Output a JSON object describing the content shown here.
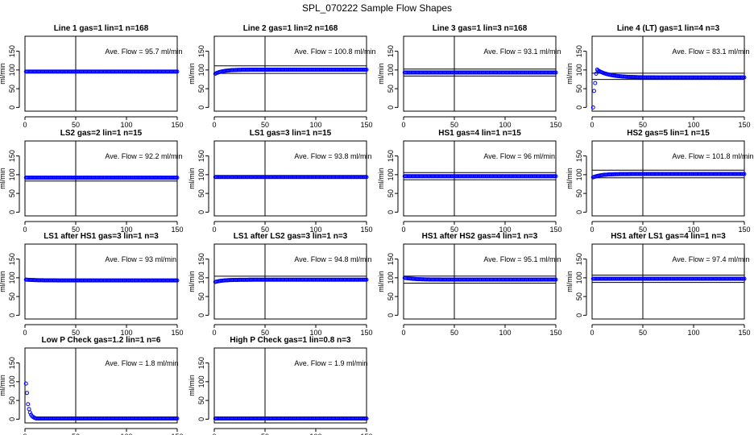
{
  "title": "SPL_070222  Sample Flow Shapes",
  "ylabel": "ml/min",
  "x_ticks": [
    0,
    50,
    100,
    150
  ],
  "y_ticks": [
    0,
    50,
    100,
    150
  ],
  "colors": {
    "points": "#0000ff",
    "lines": "#000000",
    "background": "#ffffff"
  },
  "chart_data": [
    {
      "type": "scatter",
      "title": "Line 1 gas=1 lin=1 n=168",
      "annotation": "Ave. Flow =  95.7  ml/min",
      "ave_flow": 95.7,
      "xlim": [
        0,
        150
      ],
      "ylim": [
        -10,
        190
      ],
      "vline": 50,
      "hlines": [],
      "profile": {
        "start": 95.7,
        "end": 95.7,
        "tau": 1,
        "rise": false
      }
    },
    {
      "type": "scatter",
      "title": "Line 2 gas=1 lin=2 n=168",
      "annotation": "Ave. Flow =  100.8  ml/min",
      "ave_flow": 100.8,
      "xlim": [
        0,
        150
      ],
      "ylim": [
        -10,
        190
      ],
      "vline": 50,
      "hlines": [
        110.9,
        90.7
      ],
      "profile": {
        "start": 90,
        "end": 100.8,
        "tau": 8,
        "rise": true
      }
    },
    {
      "type": "scatter",
      "title": "Line 3 gas=1 lin=3 n=168",
      "annotation": "Ave. Flow =  93.1  ml/min",
      "ave_flow": 93.1,
      "xlim": [
        0,
        150
      ],
      "ylim": [
        -10,
        190
      ],
      "vline": 50,
      "hlines": [
        102.4,
        83.8
      ],
      "profile": {
        "start": 93.1,
        "end": 93.1,
        "tau": 1,
        "rise": false
      }
    },
    {
      "type": "scatter",
      "title": "Line 4 (LT) gas=1 lin=4 n=3",
      "annotation": "Ave. Flow =  83.1  ml/min",
      "ave_flow": 83.1,
      "xlim": [
        0,
        150
      ],
      "ylim": [
        -10,
        190
      ],
      "vline": 50,
      "hlines": [
        91.4,
        74.8
      ],
      "profile": {
        "start": 108,
        "end": 80,
        "tau": 12,
        "rise": false
      },
      "early_points": [
        [
          1,
          0
        ],
        [
          2,
          44
        ],
        [
          3,
          65
        ],
        [
          4,
          90
        ],
        [
          5,
          101
        ]
      ]
    },
    {
      "type": "scatter",
      "title": "LS2 gas=2 lin=1 n=15",
      "annotation": "Ave. Flow =  92.2  ml/min",
      "ave_flow": 92.2,
      "xlim": [
        0,
        150
      ],
      "ylim": [
        -10,
        190
      ],
      "vline": 50,
      "hlines": [
        83.0
      ],
      "profile": {
        "start": 92.2,
        "end": 92.2,
        "tau": 1,
        "rise": false
      }
    },
    {
      "type": "scatter",
      "title": "LS1 gas=3 lin=1 n=15",
      "annotation": "Ave. Flow =  93.8  ml/min",
      "ave_flow": 93.8,
      "xlim": [
        0,
        150
      ],
      "ylim": [
        -10,
        190
      ],
      "vline": 50,
      "hlines": [],
      "profile": {
        "start": 93.8,
        "end": 93.8,
        "tau": 1,
        "rise": false
      }
    },
    {
      "type": "scatter",
      "title": "HS1 gas=4 lin=1 n=15",
      "annotation": "Ave. Flow =  96  ml/min",
      "ave_flow": 96,
      "xlim": [
        0,
        150
      ],
      "ylim": [
        -10,
        190
      ],
      "vline": 50,
      "hlines": [
        105.6,
        86.4
      ],
      "profile": {
        "start": 96,
        "end": 96,
        "tau": 1,
        "rise": false
      }
    },
    {
      "type": "scatter",
      "title": "HS2 gas=5 lin=1 n=15",
      "annotation": "Ave. Flow =  101.8  ml/min",
      "ave_flow": 101.8,
      "xlim": [
        0,
        150
      ],
      "ylim": [
        -10,
        190
      ],
      "vline": 50,
      "hlines": [
        112.0,
        91.6
      ],
      "profile": {
        "start": 93,
        "end": 101.8,
        "tau": 8,
        "rise": true
      }
    },
    {
      "type": "scatter",
      "title": "LS1 after HS1 gas=3 lin=1 n=3",
      "annotation": "Ave. Flow =  93  ml/min",
      "ave_flow": 93,
      "xlim": [
        0,
        150
      ],
      "ylim": [
        -10,
        190
      ],
      "vline": 50,
      "hlines": [],
      "profile": {
        "start": 95,
        "end": 93,
        "tau": 10,
        "rise": false
      }
    },
    {
      "type": "scatter",
      "title": "LS1 after LS2 gas=3 lin=1 n=3",
      "annotation": "Ave. Flow =  94.8  ml/min",
      "ave_flow": 94.8,
      "xlim": [
        0,
        150
      ],
      "ylim": [
        -10,
        190
      ],
      "vline": 50,
      "hlines": [
        104.3
      ],
      "profile": {
        "start": 89,
        "end": 94.8,
        "tau": 8,
        "rise": true
      }
    },
    {
      "type": "scatter",
      "title": "HS1 after HS2 gas=4 lin=1 n=3",
      "annotation": "Ave. Flow =  95.1  ml/min",
      "ave_flow": 95.1,
      "xlim": [
        0,
        150
      ],
      "ylim": [
        -10,
        190
      ],
      "vline": 50,
      "hlines": [
        104.6,
        85.6
      ],
      "profile": {
        "start": 100,
        "end": 95.1,
        "tau": 10,
        "rise": false
      }
    },
    {
      "type": "scatter",
      "title": "HS1 after LS1 gas=4 lin=1 n=3",
      "annotation": "Ave. Flow =  97.4  ml/min",
      "ave_flow": 97.4,
      "xlim": [
        0,
        150
      ],
      "ylim": [
        -10,
        190
      ],
      "vline": 50,
      "hlines": [
        107.1,
        87.7
      ],
      "profile": {
        "start": 97.4,
        "end": 97.4,
        "tau": 1,
        "rise": false
      }
    },
    {
      "type": "scatter",
      "title": "Low P Check gas=1.2 lin=1 n=6",
      "annotation": "Ave. Flow =  1.8  ml/min",
      "ave_flow": 1.8,
      "xlim": [
        0,
        150
      ],
      "ylim": [
        -10,
        190
      ],
      "vline": 50,
      "hlines": [],
      "profile": {
        "start": 1.8,
        "end": 1.8,
        "tau": 1,
        "rise": false
      },
      "early_points": [
        [
          1,
          95
        ],
        [
          2,
          70
        ],
        [
          3,
          40
        ],
        [
          4,
          27
        ],
        [
          5,
          18
        ],
        [
          6,
          12
        ],
        [
          7,
          8
        ],
        [
          8,
          6
        ],
        [
          9,
          4
        ],
        [
          10,
          3
        ]
      ]
    },
    {
      "type": "scatter",
      "title": "High P Check gas=1 lin=0.8 n=3",
      "annotation": "Ave. Flow =  1.9  ml/min",
      "ave_flow": 1.9,
      "xlim": [
        0,
        150
      ],
      "ylim": [
        -10,
        190
      ],
      "vline": 50,
      "hlines": [],
      "profile": {
        "start": 1.9,
        "end": 1.9,
        "tau": 1,
        "rise": false
      }
    }
  ]
}
